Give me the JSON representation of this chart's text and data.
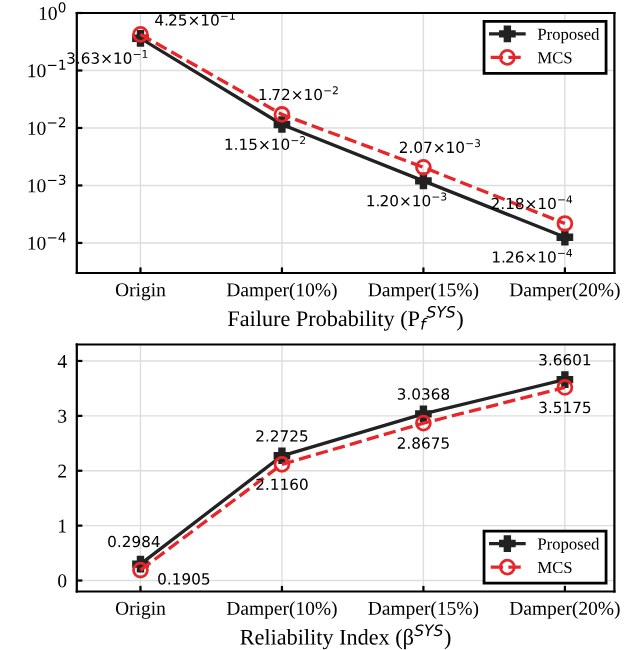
{
  "chart_data": [
    {
      "type": "line",
      "xlabel": "Failure Probability (P$_{f}$$^{SYS}$)",
      "categories": [
        "Origin",
        "Damper(10%)",
        "Damper(15%)",
        "Damper(20%)"
      ],
      "log": "y",
      "ylim": [
        3e-05,
        1
      ],
      "yticks": [
        {
          "value": 1,
          "label": "10$^{0}$"
        },
        {
          "value": 0.1,
          "label": "10$^{−1}$"
        },
        {
          "value": 0.01,
          "label": "10$^{−2}$"
        },
        {
          "value": 0.001,
          "label": "10$^{−3}$"
        },
        {
          "value": 0.0001,
          "label": "10$^{−4}$"
        }
      ],
      "grid": true,
      "legend": "top right",
      "series": [
        {
          "name": "Proposed",
          "color": "#222222",
          "marker": "cross",
          "line_style": "solid",
          "values": [
            0.363,
            0.0115,
            0.0012,
            0.000126
          ],
          "value_labels": [
            "3.63×10$^{−1}$",
            "1.15×10$^{−2}$",
            "1.20×10$^{−3}$",
            "1.26×10$^{−4}$"
          ]
        },
        {
          "name": "MCS",
          "color": "#e8262a",
          "marker": "circle",
          "line_style": "dashed",
          "values": [
            0.425,
            0.0172,
            0.00207,
            0.000218
          ],
          "value_labels": [
            "4.25×10$^{−1}$",
            "1.72×10$^{−2}$",
            "2.07×10$^{−3}$",
            "2.18×10$^{−4}$"
          ]
        }
      ]
    },
    {
      "type": "line",
      "xlabel": "Reliability Index (β$^{SYS}$)",
      "categories": [
        "Origin",
        "Damper(10%)",
        "Damper(15%)",
        "Damper(20%)"
      ],
      "ylim": [
        -0.2,
        4.3
      ],
      "yticks": [
        0,
        1,
        2,
        3,
        4
      ],
      "grid": true,
      "legend": "bottom right",
      "series": [
        {
          "name": "Proposed",
          "color": "#222222",
          "marker": "cross",
          "line_style": "solid",
          "values": [
            0.2984,
            2.2725,
            3.0368,
            3.6601
          ],
          "value_labels": [
            "0.2984",
            "2.2725",
            "3.0368",
            "3.6601"
          ]
        },
        {
          "name": "MCS",
          "color": "#e8262a",
          "marker": "circle",
          "line_style": "dashed",
          "values": [
            0.1905,
            2.116,
            2.8675,
            3.5175
          ],
          "value_labels": [
            "0.1905",
            "2.1160",
            "2.8675",
            "3.5175"
          ]
        }
      ]
    }
  ]
}
